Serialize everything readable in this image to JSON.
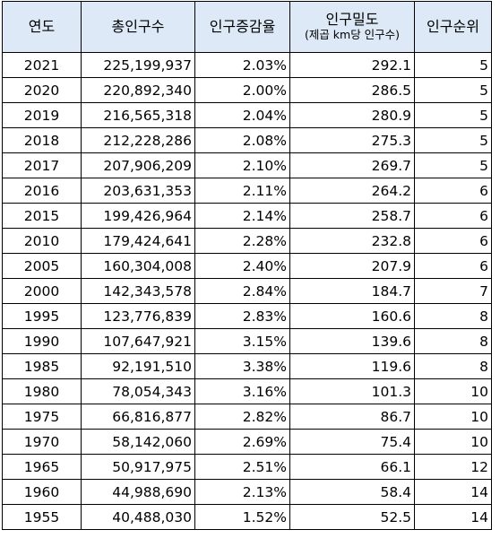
{
  "headers": {
    "year": "연도",
    "population": "총인구수",
    "growth": "인구증감율",
    "density": "인구밀도",
    "density_unit": "(제곱 km당 인구수)",
    "rank": "인구순위"
  },
  "rows": [
    {
      "year": "2021",
      "population": "225,199,937",
      "growth": "2.03%",
      "density": "292.1",
      "rank": "5"
    },
    {
      "year": "2020",
      "population": "220,892,340",
      "growth": "2.00%",
      "density": "286.5",
      "rank": "5"
    },
    {
      "year": "2019",
      "population": "216,565,318",
      "growth": "2.04%",
      "density": "280.9",
      "rank": "5"
    },
    {
      "year": "2018",
      "population": "212,228,286",
      "growth": "2.08%",
      "density": "275.3",
      "rank": "5"
    },
    {
      "year": "2017",
      "population": "207,906,209",
      "growth": "2.10%",
      "density": "269.7",
      "rank": "5"
    },
    {
      "year": "2016",
      "population": "203,631,353",
      "growth": "2.11%",
      "density": "264.2",
      "rank": "6"
    },
    {
      "year": "2015",
      "population": "199,426,964",
      "growth": "2.14%",
      "density": "258.7",
      "rank": "6"
    },
    {
      "year": "2010",
      "population": "179,424,641",
      "growth": "2.28%",
      "density": "232.8",
      "rank": "6"
    },
    {
      "year": "2005",
      "population": "160,304,008",
      "growth": "2.40%",
      "density": "207.9",
      "rank": "6"
    },
    {
      "year": "2000",
      "population": "142,343,578",
      "growth": "2.84%",
      "density": "184.7",
      "rank": "7"
    },
    {
      "year": "1995",
      "population": "123,776,839",
      "growth": "2.83%",
      "density": "160.6",
      "rank": "8"
    },
    {
      "year": "1990",
      "population": "107,647,921",
      "growth": "3.15%",
      "density": "139.6",
      "rank": "8"
    },
    {
      "year": "1985",
      "population": "92,191,510",
      "growth": "3.38%",
      "density": "119.6",
      "rank": "8"
    },
    {
      "year": "1980",
      "population": "78,054,343",
      "growth": "3.16%",
      "density": "101.3",
      "rank": "10"
    },
    {
      "year": "1975",
      "population": "66,816,877",
      "growth": "2.82%",
      "density": "86.7",
      "rank": "10"
    },
    {
      "year": "1970",
      "population": "58,142,060",
      "growth": "2.69%",
      "density": "75.4",
      "rank": "10"
    },
    {
      "year": "1965",
      "population": "50,917,975",
      "growth": "2.51%",
      "density": "66.1",
      "rank": "12"
    },
    {
      "year": "1960",
      "population": "44,988,690",
      "growth": "2.13%",
      "density": "58.4",
      "rank": "14"
    },
    {
      "year": "1955",
      "population": "40,488,030",
      "growth": "1.52%",
      "density": "52.5",
      "rank": "14"
    }
  ],
  "colors": {
    "header_bg": "#dde9f7",
    "border": "#000000"
  }
}
